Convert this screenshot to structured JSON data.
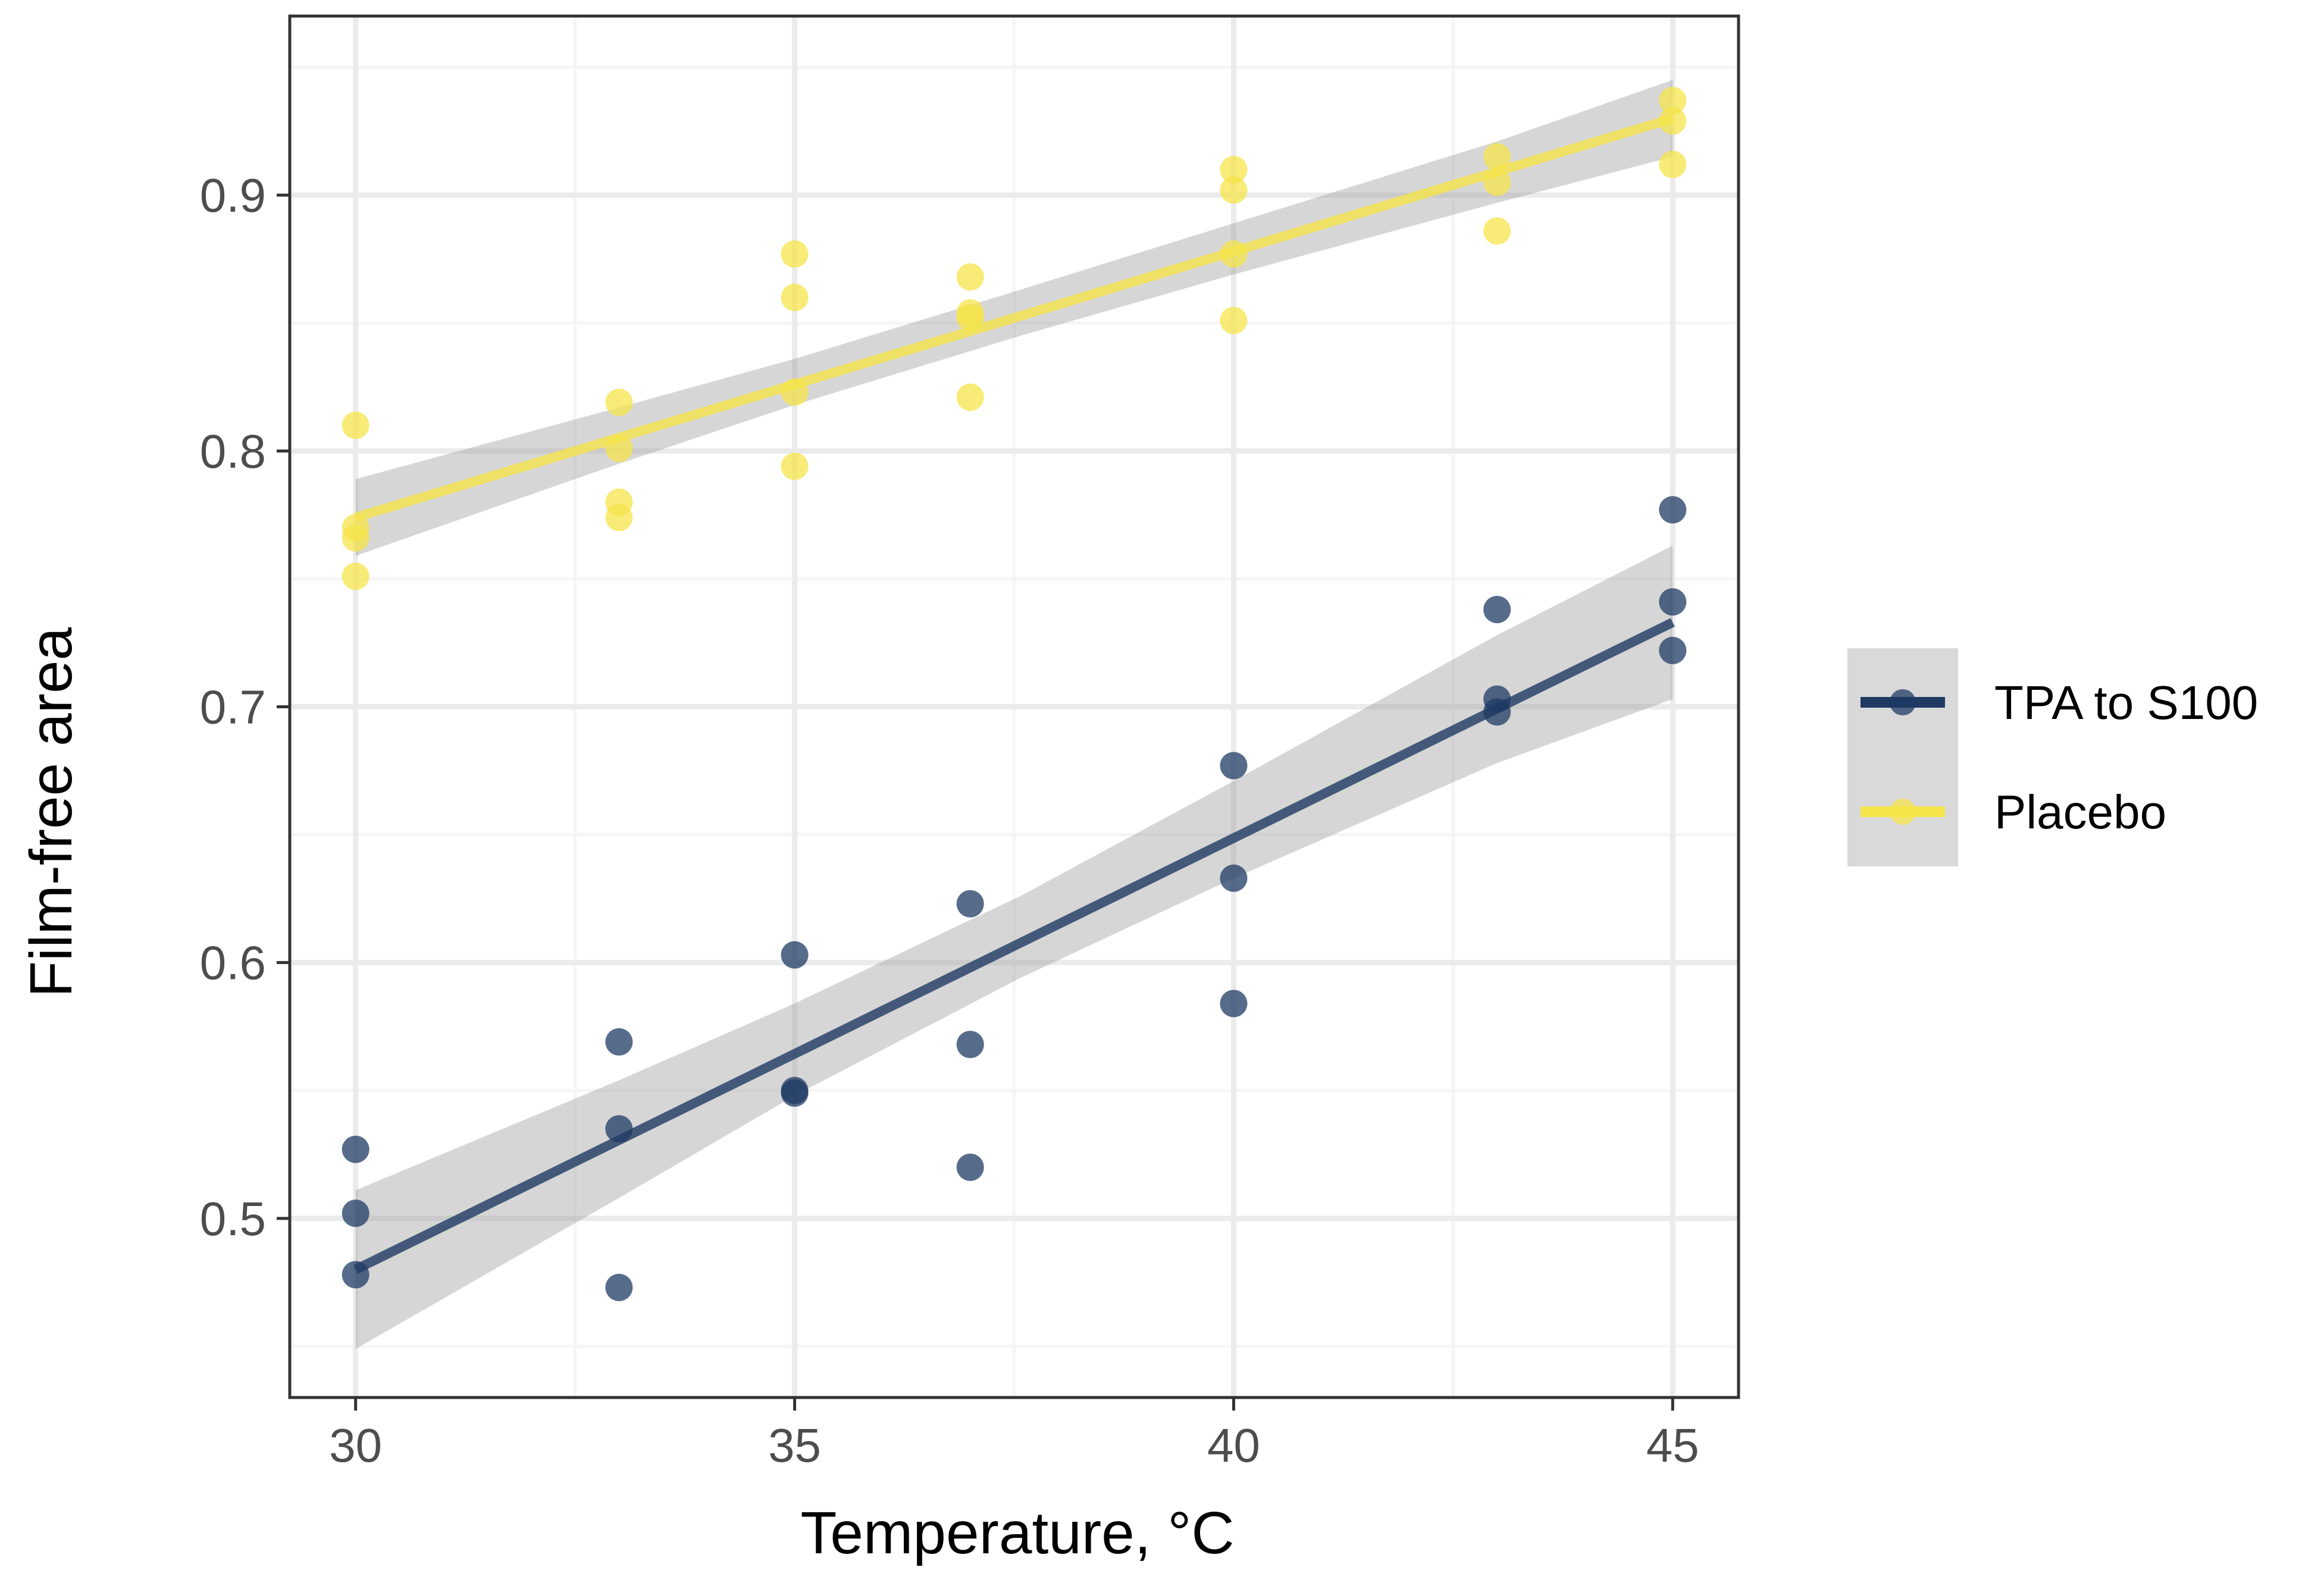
{
  "chart_data": {
    "type": "scatter",
    "title": "",
    "xlabel": "Temperature,  °C",
    "ylabel": "Film-free area",
    "xlim": [
      29.25,
      45.75
    ],
    "ylim": [
      0.43,
      0.97
    ],
    "xticks": [
      30,
      35,
      40,
      45
    ],
    "xtick_labels": [
      "30",
      "35",
      "40",
      "45"
    ],
    "yticks": [
      0.5,
      0.6,
      0.7,
      0.8,
      0.9
    ],
    "ytick_labels": [
      "0.5",
      "0.6",
      "0.7",
      "0.8",
      "0.9"
    ],
    "grid": true,
    "legend_position": "right",
    "series": [
      {
        "name": "TPA to S100",
        "color": "#1f3a63",
        "points": [
          {
            "x": 30,
            "y": 0.527
          },
          {
            "x": 30,
            "y": 0.502
          },
          {
            "x": 30,
            "y": 0.478
          },
          {
            "x": 33,
            "y": 0.569
          },
          {
            "x": 33,
            "y": 0.535
          },
          {
            "x": 33,
            "y": 0.473
          },
          {
            "x": 35,
            "y": 0.603
          },
          {
            "x": 35,
            "y": 0.549
          },
          {
            "x": 35,
            "y": 0.55
          },
          {
            "x": 37,
            "y": 0.623
          },
          {
            "x": 37,
            "y": 0.568
          },
          {
            "x": 37,
            "y": 0.52
          },
          {
            "x": 40,
            "y": 0.677
          },
          {
            "x": 40,
            "y": 0.633
          },
          {
            "x": 40,
            "y": 0.584
          },
          {
            "x": 43,
            "y": 0.738
          },
          {
            "x": 43,
            "y": 0.703
          },
          {
            "x": 43,
            "y": 0.698
          },
          {
            "x": 45,
            "y": 0.777
          },
          {
            "x": 45,
            "y": 0.741
          },
          {
            "x": 45,
            "y": 0.722
          }
        ],
        "fit": {
          "x_start": 30,
          "y_start": 0.48,
          "x_end": 45,
          "y_end": 0.733
        },
        "ci": [
          {
            "x": 30,
            "lo": 0.449,
            "hi": 0.511
          },
          {
            "x": 33,
            "lo": 0.508,
            "hi": 0.554
          },
          {
            "x": 35,
            "lo": 0.548,
            "hi": 0.584
          },
          {
            "x": 37.57,
            "lo": 0.594,
            "hi": 0.626
          },
          {
            "x": 40,
            "lo": 0.633,
            "hi": 0.671
          },
          {
            "x": 43,
            "lo": 0.678,
            "hi": 0.728
          },
          {
            "x": 45,
            "lo": 0.703,
            "hi": 0.763
          }
        ]
      },
      {
        "name": "Placebo",
        "color": "#f5e44a",
        "points": [
          {
            "x": 30,
            "y": 0.81
          },
          {
            "x": 30,
            "y": 0.77
          },
          {
            "x": 30,
            "y": 0.766
          },
          {
            "x": 30,
            "y": 0.751
          },
          {
            "x": 33,
            "y": 0.819
          },
          {
            "x": 33,
            "y": 0.801
          },
          {
            "x": 33,
            "y": 0.78
          },
          {
            "x": 33,
            "y": 0.774
          },
          {
            "x": 35,
            "y": 0.877
          },
          {
            "x": 35,
            "y": 0.86
          },
          {
            "x": 35,
            "y": 0.823
          },
          {
            "x": 35,
            "y": 0.794
          },
          {
            "x": 37,
            "y": 0.868
          },
          {
            "x": 37,
            "y": 0.854
          },
          {
            "x": 37,
            "y": 0.852
          },
          {
            "x": 37,
            "y": 0.821
          },
          {
            "x": 40,
            "y": 0.91
          },
          {
            "x": 40,
            "y": 0.902
          },
          {
            "x": 40,
            "y": 0.877
          },
          {
            "x": 40,
            "y": 0.851
          },
          {
            "x": 43,
            "y": 0.915
          },
          {
            "x": 43,
            "y": 0.905
          },
          {
            "x": 43,
            "y": 0.886
          },
          {
            "x": 45,
            "y": 0.937
          },
          {
            "x": 45,
            "y": 0.929
          },
          {
            "x": 45,
            "y": 0.912
          }
        ],
        "fit": {
          "x_start": 30,
          "y_start": 0.774,
          "x_end": 45,
          "y_end": 0.93
        },
        "ci": [
          {
            "x": 30,
            "lo": 0.759,
            "hi": 0.789
          },
          {
            "x": 33,
            "lo": 0.795,
            "hi": 0.817
          },
          {
            "x": 35,
            "lo": 0.818,
            "hi": 0.836
          },
          {
            "x": 37.57,
            "lo": 0.845,
            "hi": 0.863
          },
          {
            "x": 40,
            "lo": 0.869,
            "hi": 0.889
          },
          {
            "x": 43,
            "lo": 0.897,
            "hi": 0.921
          },
          {
            "x": 45,
            "lo": 0.915,
            "hi": 0.945
          }
        ]
      }
    ]
  },
  "colors": {
    "panel_border": "#333333",
    "grid_major": "#ebebeb",
    "grid_minor": "#f5f5f5",
    "ci_band": "#999999",
    "legend_key_bg": "#d9d9d9",
    "tick_text": "#4d4d4d"
  }
}
